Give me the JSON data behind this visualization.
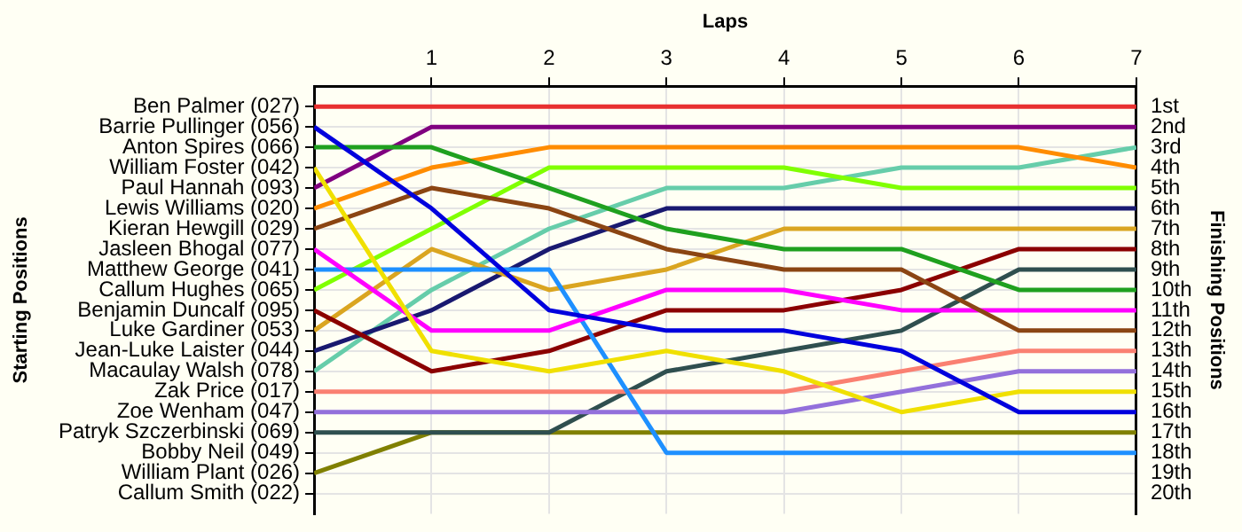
{
  "chart_data": {
    "type": "line",
    "xlabel": "Laps",
    "annotations": [
      "Starting Positions"
    ],
    "y2label": "Finishing Positions",
    "x": [
      0,
      1,
      2,
      3,
      4,
      5,
      6,
      7
    ],
    "xlim": [
      0,
      7
    ],
    "xticks": [
      1,
      2,
      3,
      4,
      5,
      6,
      7
    ],
    "y_categories": [
      "Ben Palmer (027)",
      "Barrie Pullinger (056)",
      "Anton Spires (066)",
      "William Foster (042)",
      "Paul Hannah (093)",
      "Lewis Williams (020)",
      "Kieran Hewgill (029)",
      "Jasleen Bhogal (077)",
      "Matthew George (041)",
      "Callum Hughes (065)",
      "Benjamin Duncalf (095)",
      "Luke Gardiner (053)",
      "Jean-Luke Laister (044)",
      "Macaulay Walsh (078)",
      "Zak Price (017)",
      "Zoe Wenham (047)",
      "Patryk Szczerbinski (069)",
      "Bobby Neil (049)",
      "William Plant (026)",
      "Callum Smith (022)"
    ],
    "y2lim": [
      21,
      0
    ],
    "y2ticks": [
      {
        "value": 1,
        "label": "1st"
      },
      {
        "value": 2,
        "label": "2nd"
      },
      {
        "value": 3,
        "label": "3rd"
      },
      {
        "value": 4,
        "label": "4th"
      },
      {
        "value": 5,
        "label": "5th"
      },
      {
        "value": 6,
        "label": "6th"
      },
      {
        "value": 7,
        "label": "7th"
      },
      {
        "value": 8,
        "label": "8th"
      },
      {
        "value": 9,
        "label": "9th"
      },
      {
        "value": 10,
        "label": "10th"
      },
      {
        "value": 11,
        "label": "11th"
      },
      {
        "value": 12,
        "label": "12th"
      },
      {
        "value": 13,
        "label": "13th"
      },
      {
        "value": 14,
        "label": "14th"
      },
      {
        "value": 15,
        "label": "15th"
      },
      {
        "value": 16,
        "label": "16th"
      },
      {
        "value": 17,
        "label": "17th"
      },
      {
        "value": 18,
        "label": "18th"
      },
      {
        "value": 19,
        "label": "19th"
      },
      {
        "value": 20,
        "label": "20th"
      }
    ],
    "grid": true,
    "marker": "none",
    "line_style": "solid",
    "series": [
      {
        "color": "#e83030",
        "axis": "y2",
        "values": [
          1,
          1,
          1,
          1,
          1,
          1,
          1,
          1
        ]
      },
      {
        "color": "#0000dd",
        "axis": "y2",
        "values": [
          2,
          6,
          11,
          12,
          12,
          13,
          16,
          16
        ]
      },
      {
        "color": "#1fa01f",
        "axis": "y2",
        "values": [
          3,
          3,
          5,
          7,
          8,
          8,
          10,
          10
        ]
      },
      {
        "color": "#f0e000",
        "axis": "y2",
        "values": [
          4,
          13,
          14,
          13,
          14,
          16,
          15,
          15
        ]
      },
      {
        "color": "#800080",
        "axis": "y2",
        "values": [
          5,
          2,
          2,
          2,
          2,
          2,
          2,
          2
        ]
      },
      {
        "color": "#ff8c00",
        "axis": "y2",
        "values": [
          6,
          4,
          3,
          3,
          3,
          3,
          3,
          4
        ]
      },
      {
        "color": "#8b4513",
        "axis": "y2",
        "values": [
          7,
          5,
          6,
          8,
          9,
          9,
          12,
          12
        ]
      },
      {
        "color": "#ff00ff",
        "axis": "y2",
        "values": [
          8,
          12,
          12,
          10,
          10,
          11,
          11,
          11
        ]
      },
      {
        "color": "#1e90ff",
        "axis": "y2",
        "values": [
          9,
          9,
          9,
          18,
          18,
          18,
          18,
          18
        ]
      },
      {
        "color": "#80ff00",
        "axis": "y2",
        "values": [
          10,
          7,
          4,
          4,
          4,
          5,
          5,
          5
        ]
      },
      {
        "color": "#8b0000",
        "axis": "y2",
        "values": [
          11,
          14,
          13,
          11,
          11,
          10,
          8,
          8
        ]
      },
      {
        "color": "#daa520",
        "axis": "y2",
        "values": [
          12,
          8,
          10,
          9,
          7,
          7,
          7,
          7
        ]
      },
      {
        "color": "#191970",
        "axis": "y2",
        "values": [
          13,
          11,
          8,
          6,
          6,
          6,
          6,
          6
        ]
      },
      {
        "color": "#66cdaa",
        "axis": "y2",
        "values": [
          14,
          10,
          7,
          5,
          5,
          4,
          4,
          3
        ]
      },
      {
        "color": "#fa8072",
        "axis": "y2",
        "values": [
          15,
          15,
          15,
          15,
          15,
          14,
          13,
          13
        ]
      },
      {
        "color": "#9370db",
        "axis": "y2",
        "values": [
          16,
          16,
          16,
          16,
          16,
          15,
          14,
          14
        ]
      },
      {
        "color": "#2f4f4f",
        "axis": "y2",
        "values": [
          17,
          17,
          17,
          14,
          13,
          12,
          9,
          9
        ]
      },
      {
        "color": "#808000",
        "axis": "y2",
        "values": [
          19,
          17,
          17,
          17,
          17,
          17,
          17,
          17
        ]
      }
    ]
  }
}
